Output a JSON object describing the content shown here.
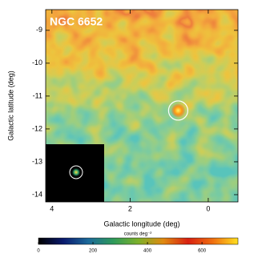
{
  "chart_data": {
    "type": "heatmap",
    "title": "NGC 6652",
    "xlabel": "Galactic longitude (deg)",
    "ylabel": "Galactic latitude (deg)",
    "xlim": [
      4.16,
      -0.76
    ],
    "xticks": [
      4,
      2,
      0
    ],
    "ylim": [
      -14.22,
      -8.37
    ],
    "yticks": [
      -9,
      -10,
      -11,
      -12,
      -13,
      -14
    ],
    "circle": {
      "x": 0.77,
      "y": -11.44
    },
    "colorbar": {
      "label": "counts deg⁻²",
      "lim": [
        0,
        732
      ],
      "ticks": [
        0,
        200,
        400,
        600
      ],
      "colors": [
        "#000000",
        "#0a1a6e",
        "#1c6a9a",
        "#2e9a5a",
        "#7cb02a",
        "#e08a10",
        "#d82010",
        "#f07010",
        "#ffe020"
      ]
    }
  }
}
